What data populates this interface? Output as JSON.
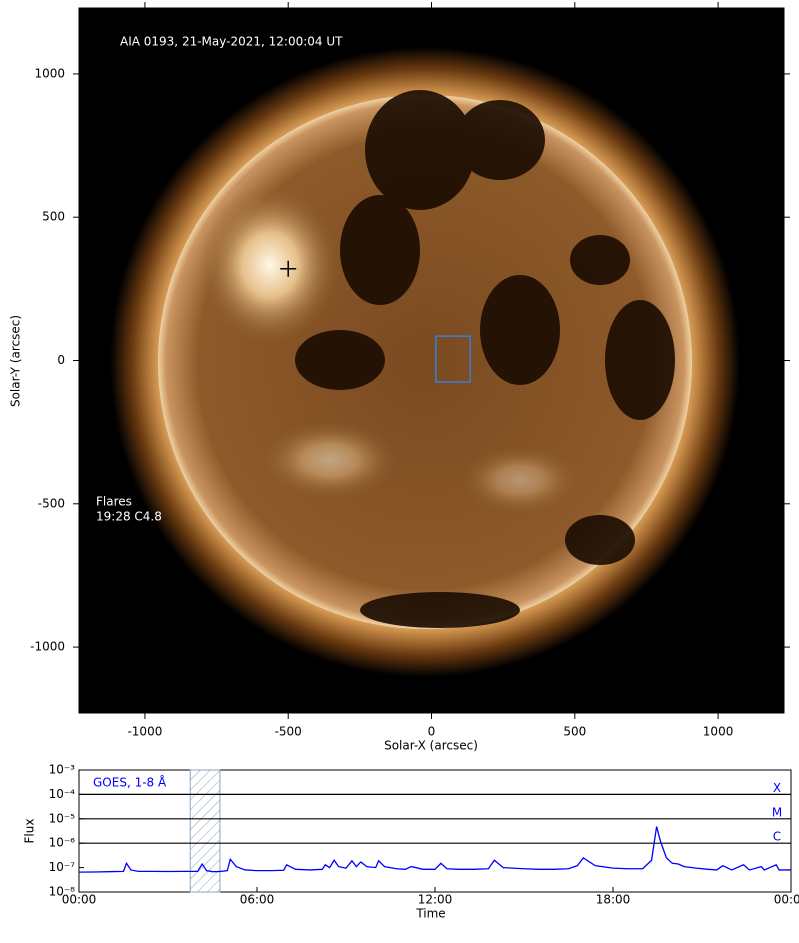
{
  "chart_data": [
    {
      "type": "image",
      "title": "AIA 0193, 21-May-2021, 12:00:04 UT",
      "x_label": "Solar-X (arcsec)",
      "y_label": "Solar-Y (arcsec)",
      "xlim": [
        -1230,
        1230
      ],
      "ylim": [
        -1230,
        1230
      ],
      "xticks": [
        -1000,
        -500,
        0,
        500,
        1000
      ],
      "yticks": [
        -1000,
        -500,
        0,
        500,
        1000
      ],
      "annotations": [
        "Flares",
        "19:28 C4.8"
      ],
      "flare_marker": {
        "x": -500,
        "y": 320
      },
      "box": {
        "x": [
          15,
          135
        ],
        "y": [
          -75,
          85
        ],
        "color": "#3a7fd5"
      }
    },
    {
      "type": "line",
      "x_label": "Time",
      "y_label": "Flux",
      "log_y": true,
      "xlim": [
        0,
        24
      ],
      "ylim": [
        1e-08,
        0.001
      ],
      "xticks": [
        {
          "value": 0,
          "label": "00:00"
        },
        {
          "value": 6,
          "label": "06:00"
        },
        {
          "value": 12,
          "label": "12:00"
        },
        {
          "value": 18,
          "label": "18:00"
        },
        {
          "value": 24,
          "label": "00:00"
        }
      ],
      "yticks": [
        {
          "value": 0.001,
          "label": "10⁻³"
        },
        {
          "value": 0.0001,
          "label": "10⁻⁴"
        },
        {
          "value": 1e-05,
          "label": "10⁻⁵"
        },
        {
          "value": 1e-06,
          "label": "10⁻⁶"
        },
        {
          "value": 1e-07,
          "label": "10⁻⁷"
        },
        {
          "value": 1e-08,
          "label": "10⁻⁸"
        }
      ],
      "levels": [
        {
          "value": 0.0001,
          "label": "X"
        },
        {
          "value": 1e-05,
          "label": "M"
        },
        {
          "value": 1e-06,
          "label": "C"
        }
      ],
      "shaded_span": [
        3.75,
        4.75
      ],
      "series": [
        {
          "name": "GOES, 1-8 Å",
          "color": "#0000ff",
          "x": [
            0,
            0.5,
            1,
            1.5,
            1.6,
            1.75,
            2,
            2.5,
            3,
            3.5,
            4.0,
            4.15,
            4.3,
            4.5,
            4.75,
            5.0,
            5.1,
            5.3,
            5.6,
            6,
            6.5,
            6.9,
            7.0,
            7.3,
            7.8,
            8.2,
            8.3,
            8.45,
            8.6,
            8.75,
            9,
            9.2,
            9.35,
            9.5,
            9.7,
            10,
            10.1,
            10.3,
            10.7,
            11,
            11.2,
            11.6,
            12,
            12.2,
            12.4,
            12.8,
            13.3,
            13.8,
            14.0,
            14.3,
            15,
            15.5,
            16,
            16.5,
            16.8,
            17.0,
            17.4,
            18,
            18.5,
            19,
            19.3,
            19.47,
            19.6,
            19.8,
            20,
            20.2,
            20.4,
            20.8,
            21.2,
            21.5,
            21.7,
            22,
            22.4,
            22.6,
            23,
            23.1,
            23.5,
            23.6,
            24
          ],
          "values": [
            6.5e-08,
            6.6e-08,
            6.8e-08,
            7e-08,
            1.5e-07,
            8e-08,
            7e-08,
            7e-08,
            6.9e-08,
            7e-08,
            7e-08,
            1.4e-07,
            7.5e-08,
            6.8e-08,
            6.9e-08,
            7.5e-08,
            2.2e-07,
            1.1e-07,
            8e-08,
            7.5e-08,
            7.5e-08,
            7.8e-08,
            1.3e-07,
            8.5e-08,
            8e-08,
            8.5e-08,
            1.3e-07,
            1e-07,
            2e-07,
            1.1e-07,
            9.5e-08,
            1.9e-07,
            1.1e-07,
            1.7e-07,
            1.1e-07,
            1e-07,
            1.9e-07,
            1.1e-07,
            9e-08,
            8.5e-08,
            1.1e-07,
            8.5e-08,
            8.5e-08,
            1.5e-07,
            9e-08,
            8.5e-08,
            8.5e-08,
            9e-08,
            2e-07,
            1e-07,
            9e-08,
            8.5e-08,
            8.5e-08,
            9e-08,
            1.2e-07,
            2.5e-07,
            1.2e-07,
            9.5e-08,
            9e-08,
            9e-08,
            2e-07,
            4.8e-06,
            1.2e-06,
            2.5e-07,
            1.5e-07,
            1.4e-07,
            1.1e-07,
            9.5e-08,
            8.5e-08,
            8e-08,
            1.2e-07,
            8e-08,
            1.3e-07,
            8e-08,
            1.1e-07,
            8e-08,
            1.3e-07,
            8e-08,
            8e-08
          ]
        }
      ]
    }
  ]
}
